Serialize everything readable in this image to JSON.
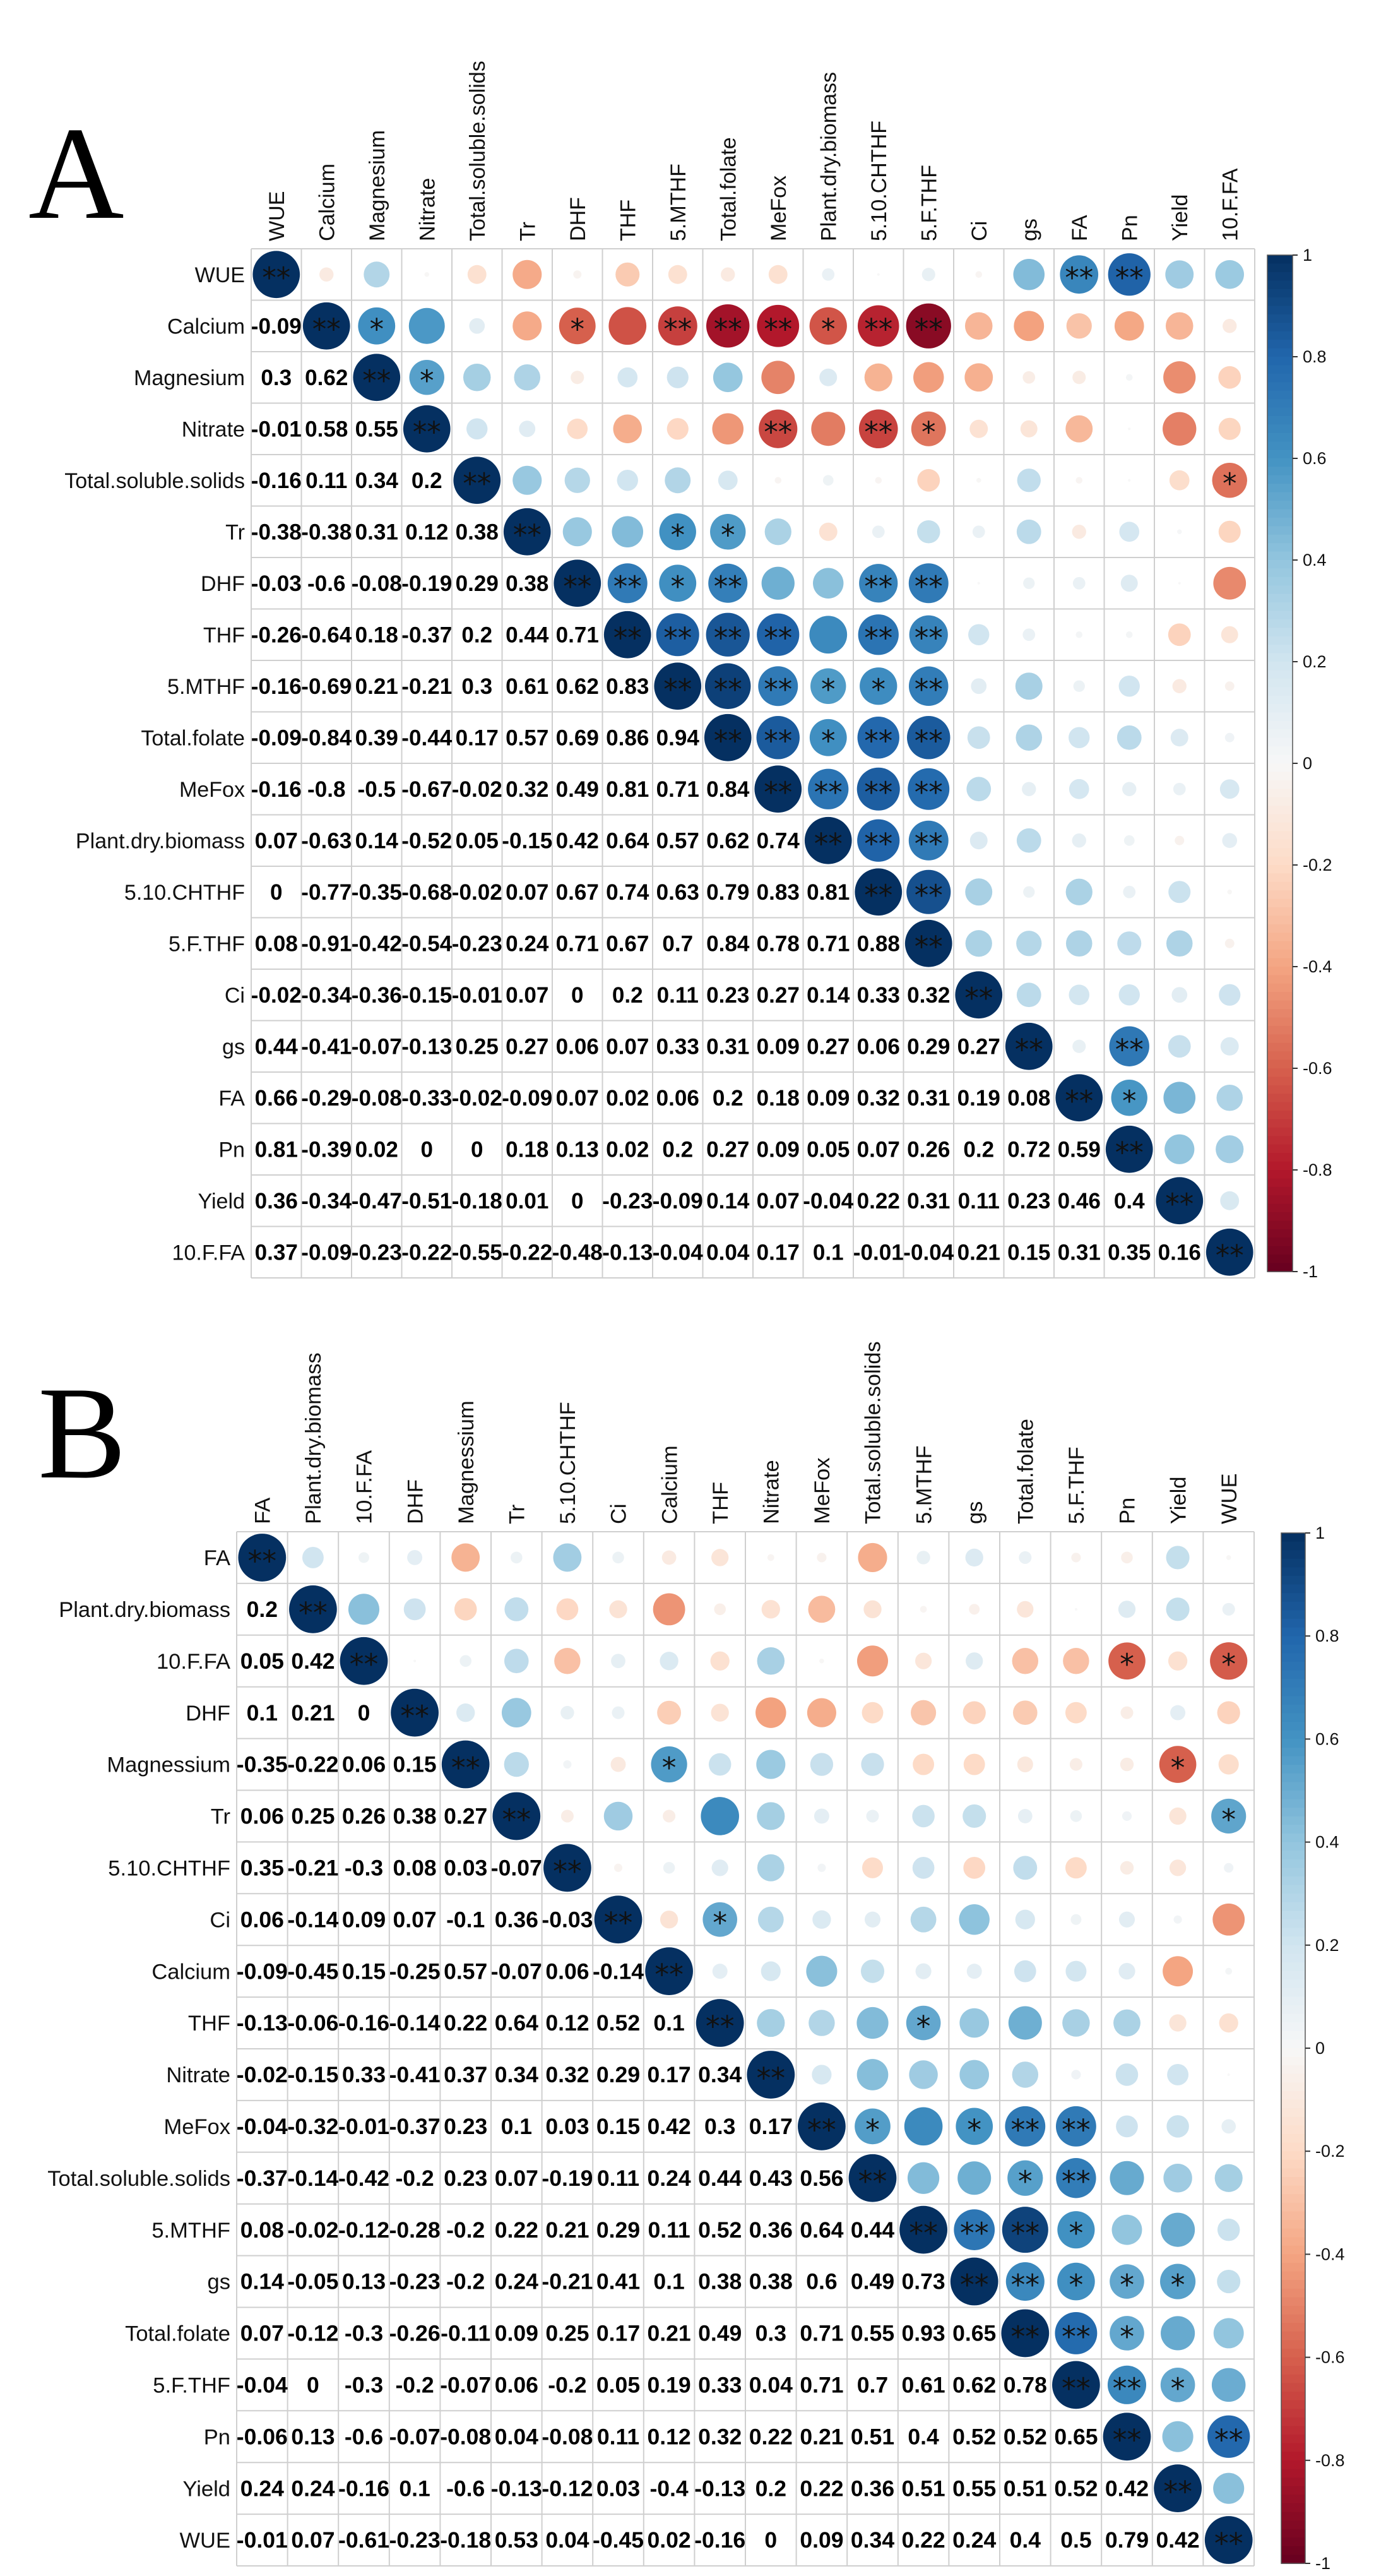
{
  "panels": [
    {
      "letter": "A",
      "vars": [
        "WUE",
        "Calcium",
        "Magnesium",
        "Nitrate",
        "Total.soluble.solids",
        "Tr",
        "DHF",
        "THF",
        "5.MTHF",
        "Total.folate",
        "MeFox",
        "Plant.dry.biomass",
        "5.10.CHTHF",
        "5.F.THF",
        "Ci",
        "gs",
        "FA",
        "Pn",
        "Yield",
        "10.F.FA"
      ],
      "lower": [
        [],
        [
          "-0.09"
        ],
        [
          "0.3",
          "0.62"
        ],
        [
          "-0.01",
          "0.58",
          "0.55"
        ],
        [
          "-0.16",
          "0.11",
          "0.34",
          "0.2"
        ],
        [
          "-0.38",
          "-0.38",
          "0.31",
          "0.12",
          "0.38"
        ],
        [
          "-0.03",
          "-0.6",
          "-0.08",
          "-0.19",
          "0.29",
          "0.38"
        ],
        [
          "-0.26",
          "-0.64",
          "0.18",
          "-0.37",
          "0.2",
          "0.44",
          "0.71"
        ],
        [
          "-0.16",
          "-0.69",
          "0.21",
          "-0.21",
          "0.3",
          "0.61",
          "0.62",
          "0.83"
        ],
        [
          "-0.09",
          "-0.84",
          "0.39",
          "-0.44",
          "0.17",
          "0.57",
          "0.69",
          "0.86",
          "0.94"
        ],
        [
          "-0.16",
          "-0.8",
          "-0.5",
          "-0.67",
          "-0.02",
          "0.32",
          "0.49",
          "0.81",
          "0.71",
          "0.84"
        ],
        [
          "0.07",
          "-0.63",
          "0.14",
          "-0.52",
          "0.05",
          "-0.15",
          "0.42",
          "0.64",
          "0.57",
          "0.62",
          "0.74"
        ],
        [
          "0",
          "-0.77",
          "-0.35",
          "-0.68",
          "-0.02",
          "0.07",
          "0.67",
          "0.74",
          "0.63",
          "0.79",
          "0.83",
          "0.81"
        ],
        [
          "0.08",
          "-0.91",
          "-0.42",
          "-0.54",
          "-0.23",
          "0.24",
          "0.71",
          "0.67",
          "0.7",
          "0.84",
          "0.78",
          "0.71",
          "0.88"
        ],
        [
          "-0.02",
          "-0.34",
          "-0.36",
          "-0.15",
          "-0.01",
          "0.07",
          "0",
          "0.2",
          "0.11",
          "0.23",
          "0.27",
          "0.14",
          "0.33",
          "0.32"
        ],
        [
          "0.44",
          "-0.41",
          "-0.07",
          "-0.13",
          "0.25",
          "0.27",
          "0.06",
          "0.07",
          "0.33",
          "0.31",
          "0.09",
          "0.27",
          "0.06",
          "0.29",
          "0.27"
        ],
        [
          "0.66",
          "-0.29",
          "-0.08",
          "-0.33",
          "-0.02",
          "-0.09",
          "0.07",
          "0.02",
          "0.06",
          "0.2",
          "0.18",
          "0.09",
          "0.32",
          "0.31",
          "0.19",
          "0.08"
        ],
        [
          "0.81",
          "-0.39",
          "0.02",
          "0",
          "0",
          "0.18",
          "0.13",
          "0.02",
          "0.2",
          "0.27",
          "0.09",
          "0.05",
          "0.07",
          "0.26",
          "0.2",
          "0.72",
          "0.59"
        ],
        [
          "0.36",
          "-0.34",
          "-0.47",
          "-0.51",
          "-0.18",
          "0.01",
          "0",
          "-0.23",
          "-0.09",
          "0.14",
          "0.07",
          "-0.04",
          "0.22",
          "0.31",
          "0.11",
          "0.23",
          "0.46",
          "0.4"
        ],
        [
          "0.37",
          "-0.09",
          "-0.23",
          "-0.22",
          "-0.55",
          "-0.22",
          "-0.48",
          "-0.13",
          "-0.04",
          "0.04",
          "0.17",
          "0.1",
          "-0.01",
          "-0.04",
          "0.21",
          "0.15",
          "0.31",
          "0.35",
          "0.16"
        ]
      ],
      "stars": {
        "1-2": "*",
        "2-3": "*",
        "1-6": "*",
        "1-8": "**",
        "1-9": "**",
        "1-10": "**",
        "1-11": "*",
        "1-12": "**",
        "1-13": "**",
        "3-10": "**",
        "3-12": "**",
        "3-13": "*",
        "4-19": "*",
        "5-8": "*",
        "5-9": "*",
        "6-7": "**",
        "6-8": "*",
        "6-9": "**",
        "6-12": "**",
        "6-13": "**",
        "7-8": "**",
        "7-9": "**",
        "7-10": "**",
        "7-12": "**",
        "7-13": "**",
        "8-9": "**",
        "8-10": "**",
        "8-11": "*",
        "8-12": "*",
        "8-13": "**",
        "9-10": "**",
        "9-11": "*",
        "9-12": "**",
        "9-13": "**",
        "10-11": "**",
        "10-12": "**",
        "10-13": "**",
        "11-12": "**",
        "11-13": "**",
        "12-13": "**",
        "0-16": "**",
        "0-17": "**",
        "15-17": "**",
        "16-17": "*"
      },
      "colorbar_ticks": [
        "1",
        "0.8",
        "0.6",
        "0.4",
        "0.2",
        "0",
        "-0.2",
        "-0.4",
        "-0.6",
        "-0.8",
        "-1"
      ]
    },
    {
      "letter": "B",
      "vars": [
        "FA",
        "Plant.dry.biomass",
        "10.F.FA",
        "DHF",
        "Magnessium",
        "Tr",
        "5.10.CHTHF",
        "Ci",
        "Calcium",
        "THF",
        "Nitrate",
        "MeFox",
        "Total.soluble.solids",
        "5.MTHF",
        "gs",
        "Total.folate",
        "5.F.THF",
        "Pn",
        "Yield",
        "WUE"
      ],
      "lower": [
        [],
        [
          "0.2"
        ],
        [
          "0.05",
          "0.42"
        ],
        [
          "0.1",
          "0.21",
          "0"
        ],
        [
          "-0.35",
          "-0.22",
          "0.06",
          "0.15"
        ],
        [
          "0.06",
          "0.25",
          "0.26",
          "0.38",
          "0.27"
        ],
        [
          "0.35",
          "-0.21",
          "-0.3",
          "0.08",
          "0.03",
          "-0.07"
        ],
        [
          "0.06",
          "-0.14",
          "0.09",
          "0.07",
          "-0.1",
          "0.36",
          "-0.03"
        ],
        [
          "-0.09",
          "-0.45",
          "0.15",
          "-0.25",
          "0.57",
          "-0.07",
          "0.06",
          "-0.14"
        ],
        [
          "-0.13",
          "-0.06",
          "-0.16",
          "-0.14",
          "0.22",
          "0.64",
          "0.12",
          "0.52",
          "0.1"
        ],
        [
          "-0.02",
          "-0.15",
          "0.33",
          "-0.41",
          "0.37",
          "0.34",
          "0.32",
          "0.29",
          "0.17",
          "0.34"
        ],
        [
          "-0.04",
          "-0.32",
          "-0.01",
          "-0.37",
          "0.23",
          "0.1",
          "0.03",
          "0.15",
          "0.42",
          "0.3",
          "0.17"
        ],
        [
          "-0.37",
          "-0.14",
          "-0.42",
          "-0.2",
          "0.23",
          "0.07",
          "-0.19",
          "0.11",
          "0.24",
          "0.44",
          "0.43",
          "0.56"
        ],
        [
          "0.08",
          "-0.02",
          "-0.12",
          "-0.28",
          "-0.2",
          "0.22",
          "0.21",
          "0.29",
          "0.11",
          "0.52",
          "0.36",
          "0.64",
          "0.44"
        ],
        [
          "0.14",
          "-0.05",
          "0.13",
          "-0.23",
          "-0.2",
          "0.24",
          "-0.21",
          "0.41",
          "0.1",
          "0.38",
          "0.38",
          "0.6",
          "0.49",
          "0.73"
        ],
        [
          "0.07",
          "-0.12",
          "-0.3",
          "-0.26",
          "-0.11",
          "0.09",
          "0.25",
          "0.17",
          "0.21",
          "0.49",
          "0.3",
          "0.71",
          "0.55",
          "0.93",
          "0.65"
        ],
        [
          "-0.04",
          "0",
          "-0.3",
          "-0.2",
          "-0.07",
          "0.06",
          "-0.2",
          "0.05",
          "0.19",
          "0.33",
          "0.04",
          "0.71",
          "0.7",
          "0.61",
          "0.62",
          "0.78"
        ],
        [
          "-0.06",
          "0.13",
          "-0.6",
          "-0.07",
          "-0.08",
          "0.04",
          "-0.08",
          "0.11",
          "0.12",
          "0.32",
          "0.22",
          "0.21",
          "0.51",
          "0.4",
          "0.52",
          "0.52",
          "0.65"
        ],
        [
          "0.24",
          "0.24",
          "-0.16",
          "0.1",
          "-0.6",
          "-0.13",
          "-0.12",
          "0.03",
          "-0.4",
          "-0.13",
          "0.2",
          "0.22",
          "0.36",
          "0.51",
          "0.55",
          "0.51",
          "0.52",
          "0.42"
        ],
        [
          "-0.01",
          "0.07",
          "-0.61",
          "-0.23",
          "-0.18",
          "0.53",
          "0.04",
          "-0.45",
          "0.02",
          "-0.16",
          "0",
          "0.09",
          "0.34",
          "0.22",
          "0.24",
          "0.4",
          "0.5",
          "0.79",
          "0.42"
        ]
      ],
      "stars": {
        "2-17": "*",
        "2-19": "*",
        "4-8": "*",
        "4-18": "*",
        "5-19": "*",
        "7-9": "*",
        "9-13": "*",
        "11-12": "*",
        "11-14": "*",
        "11-15": "**",
        "11-16": "**",
        "12-15": "*",
        "12-16": "**",
        "13-14": "**",
        "13-15": "**",
        "13-16": "*",
        "14-15": "**",
        "14-16": "*",
        "14-17": "*",
        "14-18": "*",
        "15-16": "**",
        "15-17": "*",
        "16-17": "**",
        "16-18": "*",
        "17-19": "**"
      },
      "colorbar_ticks": [
        "1",
        "0.8",
        "0.6",
        "0.4",
        "0.2",
        "0",
        "-0.2",
        "-0.4",
        "-0.6",
        "-0.8",
        "-1"
      ]
    }
  ]
}
